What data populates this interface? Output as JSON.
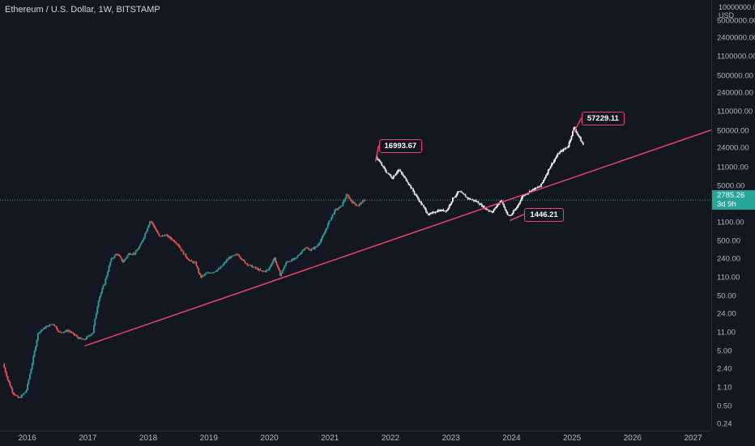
{
  "header": {
    "title": "Ethereum / U.S. Dollar, 1W, BITSTAMP"
  },
  "colors": {
    "background": "#131722",
    "up": "#26a69a",
    "down": "#ef5350",
    "projection": "#ffffff",
    "trendline": "#f23f6d",
    "current": "#26a69a"
  },
  "axis": {
    "unit_lines": [
      "10000000.00",
      "USD"
    ],
    "y_ticks": [
      {
        "label": "5000000.00",
        "value": 5000000
      },
      {
        "label": "2400000.00",
        "value": 2400000
      },
      {
        "label": "1100000.00",
        "value": 1100000
      },
      {
        "label": "500000.00",
        "value": 500000
      },
      {
        "label": "240000.00",
        "value": 240000
      },
      {
        "label": "110000.00",
        "value": 110000
      },
      {
        "label": "50000.00",
        "value": 50000
      },
      {
        "label": "24000.00",
        "value": 24000
      },
      {
        "label": "11000.00",
        "value": 11000
      },
      {
        "label": "5000.00",
        "value": 5000
      },
      {
        "label": "1100.00",
        "value": 1100
      },
      {
        "label": "500.00",
        "value": 500
      },
      {
        "label": "240.00",
        "value": 240
      },
      {
        "label": "110.00",
        "value": 110
      },
      {
        "label": "50.00",
        "value": 50
      },
      {
        "label": "24.00",
        "value": 24
      },
      {
        "label": "11.00",
        "value": 11
      },
      {
        "label": "5.00",
        "value": 5
      },
      {
        "label": "2.40",
        "value": 2.4
      },
      {
        "label": "1.10",
        "value": 1.1
      },
      {
        "label": "0.50",
        "value": 0.5
      },
      {
        "label": "0.24",
        "value": 0.24
      }
    ],
    "x_ticks": [
      "2016",
      "2017",
      "2018",
      "2019",
      "2020",
      "2021",
      "2022",
      "2023",
      "2024",
      "2025",
      "2026",
      "2027"
    ],
    "current_price": "2785.26",
    "current_countdown": "3d 9h"
  },
  "chart_data": {
    "type": "candlestick",
    "y_scale": "log",
    "ylim": [
      0.24,
      10000000
    ],
    "xlim": [
      2015.55,
      2027.3
    ],
    "current_price_value": 2785.26,
    "series": [
      {
        "kind": "historical candles",
        "anchors": [
          [
            2015.62,
            3
          ],
          [
            2015.7,
            1.5
          ],
          [
            2015.78,
            0.9
          ],
          [
            2015.88,
            0.7
          ],
          [
            2016.0,
            0.95
          ],
          [
            2016.1,
            3
          ],
          [
            2016.2,
            11
          ],
          [
            2016.33,
            14
          ],
          [
            2016.45,
            16
          ],
          [
            2016.55,
            11
          ],
          [
            2016.7,
            12
          ],
          [
            2016.85,
            9
          ],
          [
            2016.95,
            8
          ],
          [
            2017.1,
            11
          ],
          [
            2017.2,
            45
          ],
          [
            2017.3,
            90
          ],
          [
            2017.4,
            230
          ],
          [
            2017.5,
            300
          ],
          [
            2017.6,
            210
          ],
          [
            2017.7,
            300
          ],
          [
            2017.8,
            300
          ],
          [
            2017.9,
            450
          ],
          [
            2017.98,
            750
          ],
          [
            2018.05,
            1200
          ],
          [
            2018.12,
            900
          ],
          [
            2018.2,
            600
          ],
          [
            2018.3,
            650
          ],
          [
            2018.4,
            550
          ],
          [
            2018.5,
            450
          ],
          [
            2018.6,
            300
          ],
          [
            2018.7,
            220
          ],
          [
            2018.8,
            200
          ],
          [
            2018.88,
            110
          ],
          [
            2018.98,
            130
          ],
          [
            2019.1,
            140
          ],
          [
            2019.2,
            160
          ],
          [
            2019.35,
            250
          ],
          [
            2019.5,
            290
          ],
          [
            2019.6,
            210
          ],
          [
            2019.7,
            180
          ],
          [
            2019.8,
            160
          ],
          [
            2019.9,
            140
          ],
          [
            2020.0,
            150
          ],
          [
            2020.1,
            250
          ],
          [
            2020.2,
            120
          ],
          [
            2020.3,
            210
          ],
          [
            2020.45,
            240
          ],
          [
            2020.6,
            380
          ],
          [
            2020.7,
            350
          ],
          [
            2020.8,
            400
          ],
          [
            2020.9,
            600
          ],
          [
            2021.0,
            1100
          ],
          [
            2021.1,
            1800
          ],
          [
            2021.2,
            2100
          ],
          [
            2021.3,
            3500
          ],
          [
            2021.38,
            2600
          ],
          [
            2021.48,
            2200
          ],
          [
            2021.55,
            2600
          ],
          [
            2021.6,
            2785
          ]
        ]
      },
      {
        "kind": "projected path",
        "anchors": [
          [
            2021.78,
            16993.67
          ],
          [
            2021.95,
            9000
          ],
          [
            2022.05,
            7000
          ],
          [
            2022.15,
            10000
          ],
          [
            2022.3,
            6000
          ],
          [
            2022.45,
            3200
          ],
          [
            2022.55,
            2200
          ],
          [
            2022.65,
            1500
          ],
          [
            2022.8,
            1800
          ],
          [
            2022.95,
            1800
          ],
          [
            2023.05,
            3000
          ],
          [
            2023.15,
            4000
          ],
          [
            2023.3,
            3000
          ],
          [
            2023.45,
            2600
          ],
          [
            2023.6,
            1900
          ],
          [
            2023.7,
            1700
          ],
          [
            2023.85,
            2800
          ],
          [
            2023.95,
            1500
          ],
          [
            2024.0,
            1446.21
          ],
          [
            2024.1,
            2000
          ],
          [
            2024.2,
            3300
          ],
          [
            2024.35,
            4200
          ],
          [
            2024.5,
            5000
          ],
          [
            2024.65,
            11000
          ],
          [
            2024.8,
            20000
          ],
          [
            2024.95,
            26000
          ],
          [
            2025.05,
            57229.11
          ],
          [
            2025.12,
            42000
          ],
          [
            2025.2,
            28000
          ]
        ]
      }
    ],
    "trendline": {
      "from": [
        2016.95,
        6.3
      ],
      "to": [
        2027.3,
        52000
      ]
    },
    "annotations": [
      {
        "label": "16993.67",
        "x": 2021.78,
        "y": 16993.67
      },
      {
        "label": "1446.21",
        "x": 2024.0,
        "y": 1446.21
      },
      {
        "label": "57229.11",
        "x": 2025.05,
        "y": 57229.11
      }
    ]
  }
}
